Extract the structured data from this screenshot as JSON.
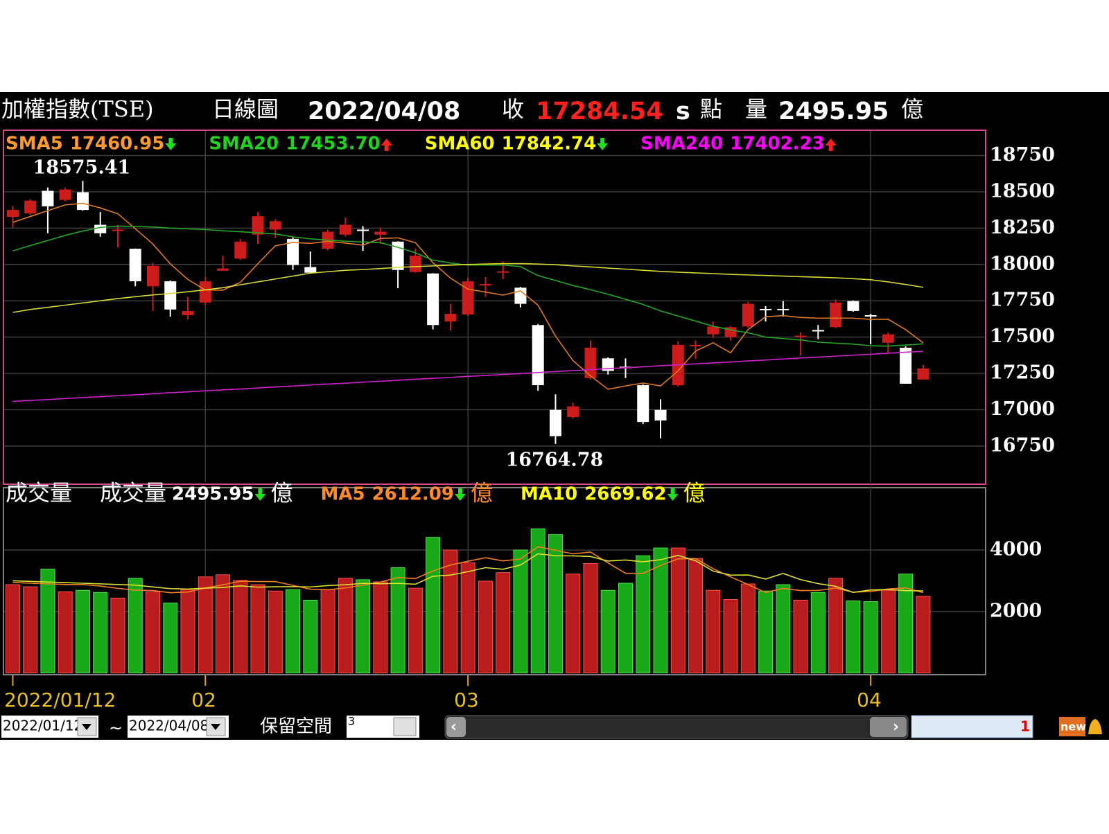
{
  "header": {
    "title": "加權指數(TSE)",
    "view": "日線圖",
    "date": "2022/04/08",
    "close_label": "收",
    "close": "17284.54",
    "s": "s",
    "unit": "點",
    "volume_label": "量",
    "volume": "2495.95",
    "volume_unit": "億"
  },
  "chart_data": [
    {
      "type": "candlestick",
      "categories": [
        "2022/01/12",
        null,
        null,
        null,
        null,
        null,
        null,
        null,
        null,
        null,
        null,
        "02",
        null,
        null,
        null,
        null,
        null,
        null,
        null,
        null,
        null,
        null,
        null,
        null,
        null,
        null,
        "03",
        null,
        null,
        null,
        null,
        null,
        null,
        null,
        null,
        null,
        null,
        null,
        null,
        null,
        null,
        null,
        null,
        null,
        null,
        null,
        null,
        null,
        null,
        "04",
        null,
        null,
        null
      ],
      "open": [
        18327,
        18351,
        18507,
        18444,
        18497,
        18273,
        18230,
        18108,
        17850,
        17884,
        17651,
        17738,
        17957,
        18040,
        18205,
        18240,
        18176,
        17982,
        18108,
        18205,
        18240,
        18205,
        18157,
        17948,
        17938,
        17607,
        17656,
        17855,
        17943,
        17840,
        17583,
        16999,
        16950,
        17218,
        17354,
        17296,
        17169,
        16999,
        17169,
        17437,
        17519,
        17500,
        17573,
        17694,
        17694,
        17500,
        17549,
        17568,
        17748,
        17651,
        17461,
        17427,
        17208
      ],
      "high": [
        18400,
        18450,
        18530,
        18530,
        18575.41,
        18361,
        18273,
        18110,
        18010,
        17890,
        17777,
        17914,
        18060,
        18176,
        18361,
        18312,
        18185,
        18089,
        18240,
        18322,
        18264,
        18254,
        18160,
        18108,
        17940,
        17729,
        17909,
        17914,
        18021,
        17845,
        17590,
        17106,
        17048,
        17476,
        17360,
        17354,
        17175,
        17072,
        17471,
        17476,
        17607,
        17575,
        17743,
        17714,
        17748,
        17534,
        17583,
        17758,
        17752,
        17660,
        17534,
        17437,
        17310
      ],
      "low": [
        18254,
        18340,
        18215,
        18434,
        18370,
        18191,
        18118,
        17850,
        17680,
        17641,
        17621,
        17719,
        17957,
        18030,
        18142,
        18181,
        17962,
        17943,
        18098,
        18191,
        18093,
        18142,
        17836,
        17943,
        17553,
        17544,
        17646,
        17777,
        17899,
        17704,
        17130,
        16764.78,
        16940,
        17208,
        17242,
        17218,
        16902,
        16804,
        17160,
        17349,
        17495,
        17476,
        17563,
        17607,
        17641,
        17373,
        17485,
        17563,
        17675,
        17451,
        17388,
        17179,
        17208
      ],
      "close": [
        18375,
        18439,
        18400,
        18516,
        18375,
        18215,
        18240,
        17884,
        17991,
        17690,
        17680,
        17884,
        17972,
        18157,
        18332,
        18298,
        17996,
        17943,
        18225,
        18273,
        18230,
        18225,
        17962,
        18060,
        17583,
        17660,
        17884,
        17865,
        17953,
        17729,
        17169,
        16818,
        17023,
        17427,
        17267,
        17286,
        16916,
        16926,
        17446,
        17446,
        17573,
        17568,
        17729,
        17685,
        17685,
        17510,
        17539,
        17738,
        17680,
        17641,
        17519,
        17179,
        17284.54
      ],
      "up_color": "#cc1c1c",
      "down_color": "#ffffff",
      "series": [
        {
          "name": "SMA5",
          "legend_value": "17460.95",
          "color": "#ff9a2e",
          "line_color": "#e07a20",
          "values": [
            18290,
            18330,
            18370,
            18410,
            18421,
            18389,
            18349,
            18246,
            18141,
            18004,
            17897,
            17824,
            17823,
            17877,
            18005,
            18129,
            18151,
            18145,
            18159,
            18147,
            18133,
            18179,
            18183,
            18150,
            18012,
            17906,
            17830,
            17810,
            17789,
            17818,
            17720,
            17507,
            17338,
            17233,
            17141,
            17164,
            17184,
            17164,
            17268,
            17404,
            17461,
            17392,
            17552,
            17640,
            17648,
            17635,
            17630,
            17631,
            17630,
            17622,
            17623,
            17551,
            17460.95
          ]
        },
        {
          "name": "SMA20",
          "legend_value": "17453.70",
          "color": "#1fd21f",
          "line_color": "#22a822",
          "values": [
            18093,
            18130,
            18165,
            18200,
            18230,
            18255,
            18264,
            18262,
            18258,
            18250,
            18245,
            18240,
            18232,
            18225,
            18218,
            18210,
            18190,
            18176,
            18168,
            18160,
            18155,
            18150,
            18118,
            18080,
            18030,
            18010,
            17996,
            17996,
            17996,
            17985,
            17923,
            17890,
            17855,
            17826,
            17795,
            17760,
            17725,
            17680,
            17645,
            17610,
            17575,
            17550,
            17530,
            17500,
            17490,
            17480,
            17465,
            17458,
            17452,
            17440,
            17438,
            17445,
            17453.7
          ]
        },
        {
          "name": "SMA60",
          "legend_value": "17842.74",
          "color": "#ffff00",
          "line_color": "#d8d830",
          "values": [
            17670,
            17690,
            17705,
            17720,
            17735,
            17750,
            17765,
            17778,
            17790,
            17800,
            17812,
            17825,
            17840,
            17860,
            17880,
            17900,
            17920,
            17940,
            17950,
            17960,
            17965,
            17972,
            17980,
            17985,
            17990,
            17995,
            18000,
            18003,
            18006,
            18006,
            18003,
            17998,
            17990,
            17983,
            17975,
            17968,
            17960,
            17952,
            17947,
            17942,
            17937,
            17932,
            17928,
            17924,
            17920,
            17916,
            17912,
            17908,
            17902,
            17895,
            17880,
            17862,
            17842.74
          ]
        },
        {
          "name": "SMA240",
          "legend_value": "17402.23",
          "color": "#ff00ff",
          "line_color": "#d020d0",
          "values": [
            17057,
            17064,
            17070,
            17077,
            17084,
            17090,
            17097,
            17103,
            17110,
            17117,
            17123,
            17130,
            17137,
            17143,
            17150,
            17157,
            17163,
            17170,
            17177,
            17183,
            17190,
            17196,
            17203,
            17210,
            17216,
            17223,
            17230,
            17236,
            17243,
            17249,
            17256,
            17263,
            17269,
            17276,
            17283,
            17289,
            17296,
            17303,
            17309,
            17316,
            17323,
            17329,
            17336,
            17342,
            17349,
            17356,
            17362,
            17369,
            17376,
            17382,
            17389,
            17396,
            17402.23
          ]
        }
      ],
      "ylim": [
        16500,
        18900
      ],
      "yticks": [
        16750,
        17000,
        17250,
        17500,
        17750,
        18000,
        18250,
        18500,
        18750
      ],
      "grid": true,
      "high_label": "18575.41",
      "low_label": "16764.78"
    },
    {
      "type": "bar",
      "title": "成交量",
      "value_name": "成交量",
      "value_label": "2495.95",
      "unit": "億",
      "values": [
        2874,
        2805,
        3380,
        2644,
        2690,
        2621,
        2437,
        3081,
        2644,
        2276,
        2713,
        3127,
        3196,
        3012,
        2874,
        2667,
        2713,
        2368,
        2713,
        3081,
        3035,
        2966,
        3425,
        2759,
        4414,
        4000,
        3587,
        2989,
        3265,
        4000,
        4690,
        4506,
        3219,
        3564,
        2690,
        2920,
        3816,
        4069,
        4069,
        3725,
        2690,
        2391,
        2897,
        2667,
        2874,
        2368,
        2621,
        3081,
        2345,
        2322,
        2690,
        3219,
        2495.95
      ],
      "up_color": "#b81c1c",
      "down_color": "#18a818",
      "series": [
        {
          "name": "MA5",
          "legend_value": "2612.09",
          "color": "#ff8a2a",
          "line_color": "#f08020",
          "values": [
            2950,
            2920,
            2900,
            2880,
            2879,
            2828,
            2754,
            2695,
            2685,
            2612,
            2634,
            2767,
            2871,
            2985,
            2974,
            2975,
            2852,
            2727,
            2708,
            2768,
            2860,
            2959,
            3104,
            3070,
            3320,
            3513,
            3637,
            3750,
            3648,
            3708,
            4111,
            3994,
            3876,
            3936,
            3580,
            3242,
            3242,
            3497,
            3714,
            3723,
            3394,
            3127,
            2879,
            2617,
            2752,
            2681,
            2686,
            2764,
            2627,
            2652,
            2732,
            2770,
            2612.09
          ]
        },
        {
          "name": "MA10",
          "legend_value": "2669.62",
          "color": "#ffff00",
          "line_color": "#e0e030",
          "values": [
            3000,
            2980,
            2960,
            2940,
            2920,
            2900,
            2880,
            2860,
            2800,
            2745,
            2731,
            2761,
            2783,
            2835,
            2793,
            2805,
            2810,
            2799,
            2846,
            2871,
            2918,
            2905,
            2915,
            2889,
            3147,
            3186,
            3298,
            3427,
            3376,
            3514,
            3880,
            3815,
            3813,
            3792,
            3644,
            3676,
            3618,
            3687,
            3825,
            3651,
            3318,
            3184,
            3188,
            3057,
            3238,
            3038,
            2907,
            2821,
            2622,
            2702,
            2717,
            2678,
            2669.62
          ]
        }
      ],
      "ylim": [
        0,
        6000
      ],
      "yticks": [
        2000,
        4000
      ],
      "grid": true
    }
  ],
  "toolbar": {
    "start": "2022/01/12",
    "sep": "~",
    "end": "2022/04/08",
    "reserve": "保留空間",
    "reserve_value": "3",
    "page": "1",
    "badge": "new"
  }
}
